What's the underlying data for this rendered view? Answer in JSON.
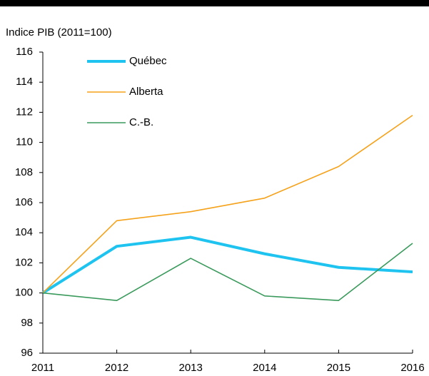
{
  "chart_data": {
    "type": "line",
    "y_label": "Indice PIB (2011=100)",
    "x": [
      2011,
      2012,
      2013,
      2014,
      2015,
      2016
    ],
    "xlim": [
      2011,
      2016
    ],
    "xticks": [
      2011,
      2012,
      2013,
      2014,
      2015,
      2016
    ],
    "ylim": [
      96,
      116
    ],
    "yticks": [
      96,
      98,
      100,
      102,
      104,
      106,
      108,
      110,
      112,
      114,
      116
    ],
    "grid": false,
    "legend": "upper left",
    "series": [
      {
        "name": "Québec",
        "color": "#1ec3f0",
        "values": [
          100,
          103.1,
          103.7,
          102.6,
          101.7,
          101.4
        ]
      },
      {
        "name": "Alberta",
        "color": "#f5a21a",
        "values": [
          100,
          104.8,
          105.4,
          106.3,
          108.4,
          111.8
        ]
      },
      {
        "name": "C.-B.",
        "color": "#3a9a5c",
        "values": [
          100,
          99.5,
          102.3,
          99.8,
          99.5,
          103.3
        ]
      }
    ]
  }
}
